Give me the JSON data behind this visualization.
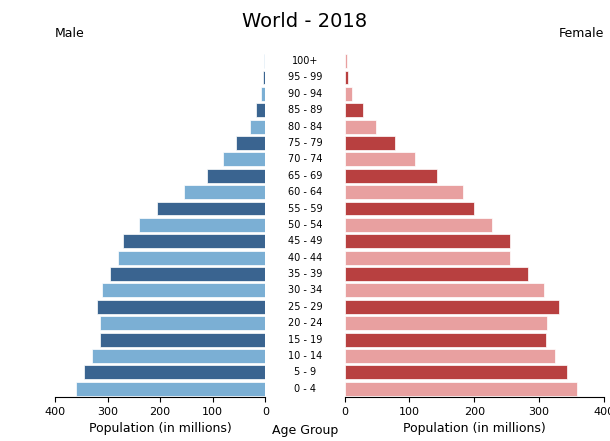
{
  "title": "World - 2018",
  "male_label": "Male",
  "female_label": "Female",
  "xlabel_left": "Population (in millions)",
  "xlabel_center": "Age Group",
  "xlabel_right": "Population (in millions)",
  "age_groups": [
    "0 - 4",
    "5 - 9",
    "10 - 14",
    "15 - 19",
    "20 - 24",
    "25 - 29",
    "30 - 34",
    "35 - 39",
    "40 - 44",
    "45 - 49",
    "50 - 54",
    "55 - 59",
    "60 - 64",
    "65 - 69",
    "70 - 74",
    "75 - 79",
    "80 - 84",
    "85 - 89",
    "90 - 94",
    "95 - 99",
    "100+"
  ],
  "male_values": [
    360,
    345,
    330,
    315,
    315,
    320,
    310,
    295,
    280,
    270,
    240,
    205,
    155,
    110,
    80,
    55,
    30,
    18,
    9,
    4,
    2
  ],
  "female_values": [
    358,
    343,
    325,
    310,
    312,
    330,
    308,
    283,
    255,
    255,
    228,
    200,
    183,
    143,
    108,
    78,
    48,
    28,
    12,
    5,
    3
  ],
  "male_colors_dark": "#3a6490",
  "male_colors_light": "#7bafd4",
  "female_colors_dark": "#b84040",
  "female_colors_light": "#e8a0a0",
  "background_color": "#ffffff",
  "xlim": 400,
  "title_fontsize": 14,
  "label_fontsize": 9,
  "tick_fontsize": 8,
  "age_label_fontsize": 7,
  "bar_height": 0.85,
  "edgecolor": "#ffffff"
}
